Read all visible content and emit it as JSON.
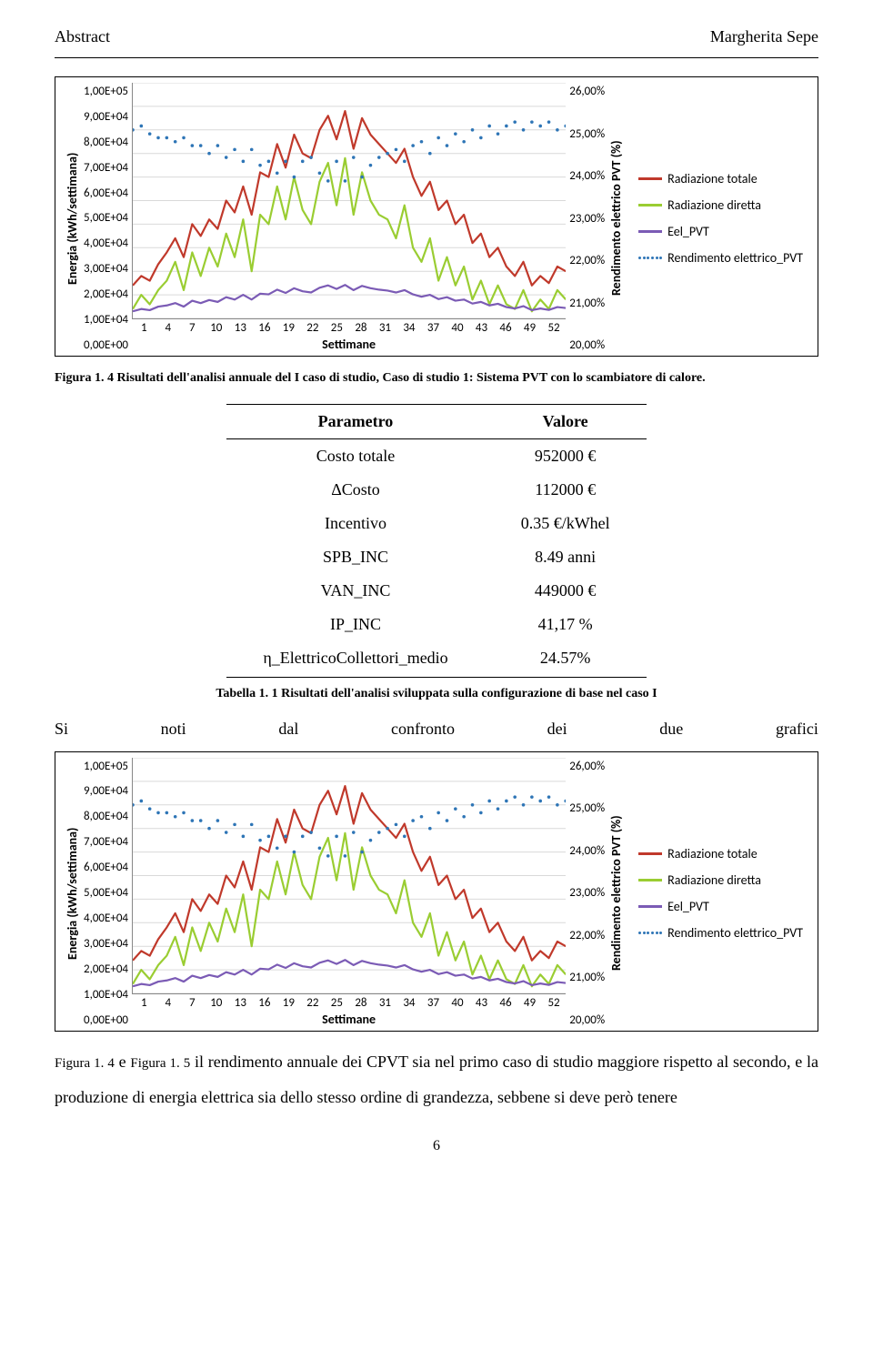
{
  "header": {
    "left": "Abstract",
    "right": "Margherita Sepe"
  },
  "chart": {
    "type": "line",
    "x_axis": {
      "label": "Settimane",
      "label_fontsize": 14,
      "ticks": [
        1,
        4,
        7,
        10,
        13,
        16,
        19,
        22,
        25,
        28,
        31,
        34,
        37,
        40,
        43,
        46,
        49,
        52
      ],
      "xmin": 1,
      "xmax": 52
    },
    "y_left": {
      "label": "Energia (kWh/settimana)",
      "label_fontsize": 14,
      "ticks": [
        "1,00E+05",
        "9,00E+04",
        "8,00E+04",
        "7,00E+04",
        "6,00E+04",
        "5,00E+04",
        "4,00E+04",
        "3,00E+04",
        "2,00E+04",
        "1,00E+04",
        "0,00E+00"
      ],
      "ymin": 0,
      "ymax": 100000
    },
    "y_right": {
      "label": "Rendimento elettrico PVT (%)",
      "label_fontsize": 14,
      "ticks": [
        "26,00%",
        "25,00%",
        "24,00%",
        "23,00%",
        "22,00%",
        "21,00%",
        "20,00%"
      ],
      "ymin": 20,
      "ymax": 26
    },
    "grid_color": "#d9d9d9",
    "background_color": "#ffffff",
    "line_width": 2.2,
    "series": [
      {
        "name": "Radiazione totale",
        "color": "#c0392b",
        "axis": "left",
        "style": "solid",
        "data": [
          14000,
          18000,
          16000,
          23000,
          28000,
          34000,
          26000,
          40000,
          35000,
          42000,
          38000,
          50000,
          45000,
          56000,
          44000,
          62000,
          60000,
          74000,
          64000,
          78000,
          70000,
          68000,
          80000,
          86000,
          76000,
          88000,
          72000,
          85000,
          78000,
          74000,
          70000,
          66000,
          72000,
          60000,
          52000,
          58000,
          46000,
          50000,
          40000,
          44000,
          32000,
          36000,
          26000,
          30000,
          22000,
          18000,
          24000,
          14000,
          18000,
          15000,
          22000,
          20000
        ]
      },
      {
        "name": "Radiazione diretta",
        "color": "#9acd32",
        "axis": "left",
        "style": "solid",
        "data": [
          4000,
          10000,
          6000,
          12000,
          16000,
          24000,
          12000,
          28000,
          18000,
          30000,
          22000,
          36000,
          26000,
          42000,
          20000,
          44000,
          40000,
          56000,
          42000,
          60000,
          46000,
          40000,
          58000,
          66000,
          48000,
          68000,
          44000,
          62000,
          50000,
          44000,
          42000,
          34000,
          48000,
          30000,
          24000,
          34000,
          16000,
          26000,
          14000,
          22000,
          8000,
          16000,
          6000,
          14000,
          6000,
          4000,
          12000,
          3000,
          8000,
          4000,
          12000,
          8000
        ]
      },
      {
        "name": "Eel_PVT",
        "color": "#7b5bb5",
        "axis": "left",
        "style": "solid",
        "data": [
          3000,
          4000,
          3500,
          5000,
          5500,
          6500,
          5000,
          7500,
          6500,
          7800,
          7000,
          9000,
          8000,
          10000,
          8000,
          10500,
          10200,
          12200,
          10800,
          12800,
          11500,
          11000,
          13000,
          14000,
          12500,
          14200,
          12000,
          13800,
          12800,
          12200,
          11800,
          11000,
          12000,
          10200,
          9200,
          10000,
          8200,
          9000,
          7500,
          8000,
          6300,
          7000,
          5500,
          6200,
          4800,
          4200,
          5200,
          3500,
          4200,
          3600,
          4800,
          4400
        ]
      },
      {
        "name": "Rendimento elettrico_PVT",
        "color": "#2e75b6",
        "axis": "right",
        "style": "dots",
        "data": [
          24.8,
          24.9,
          24.7,
          24.6,
          24.6,
          24.5,
          24.6,
          24.4,
          24.4,
          24.2,
          24.4,
          24.1,
          24.3,
          24.0,
          24.3,
          23.9,
          24.0,
          23.7,
          24.0,
          23.6,
          24.0,
          24.1,
          23.7,
          23.5,
          24.0,
          23.5,
          24.1,
          23.6,
          23.9,
          24.1,
          24.2,
          24.3,
          24.0,
          24.4,
          24.5,
          24.2,
          24.6,
          24.4,
          24.7,
          24.5,
          24.8,
          24.6,
          24.9,
          24.7,
          24.9,
          25.0,
          24.8,
          25.0,
          24.9,
          25.0,
          24.8,
          24.9
        ]
      }
    ],
    "legend": [
      {
        "key": "Radiazione totale",
        "color": "#c0392b",
        "style": "solid"
      },
      {
        "key": "Radiazione diretta",
        "color": "#9acd32",
        "style": "solid"
      },
      {
        "key": "Eel_PVT",
        "color": "#7b5bb5",
        "style": "solid"
      },
      {
        "key": "Rendimento elettrico_PVT",
        "color": "#2e75b6",
        "style": "dots"
      }
    ]
  },
  "figure1_caption": "Figura 1. 4 Risultati dell'analisi annuale del I caso di studio, Caso di studio 1: Sistema PVT con lo scambiatore di calore.",
  "table": {
    "columns": [
      "Parametro",
      "Valore"
    ],
    "rows": [
      [
        "Costo totale",
        "952000 €"
      ],
      [
        "ΔCosto",
        "112000 €"
      ],
      [
        "Incentivo",
        "0.35 €/kWhel"
      ],
      [
        "SPB_INC",
        "8.49 anni"
      ],
      [
        "VAN_INC",
        "449000 €"
      ],
      [
        "IP_INC",
        "41,17 %"
      ],
      [
        "η_ElettricoCollettori_medio",
        "24.57%"
      ]
    ]
  },
  "table_caption": "Tabella 1. 1 Risultati dell'analisi sviluppata sulla configurazione di base nel caso I",
  "spread": [
    "Si",
    "noti",
    "dal",
    "confronto",
    "dei",
    "due",
    "grafici"
  ],
  "figure2_closing": "Figura 1. 4 e Figura 1. 5 il rendimento annuale dei CPVT sia nel primo caso di studio maggiore rispetto al secondo, e la produzione di energia elettrica sia dello stesso ordine di grandezza, sebbene si deve però tenere",
  "page_number": "6"
}
